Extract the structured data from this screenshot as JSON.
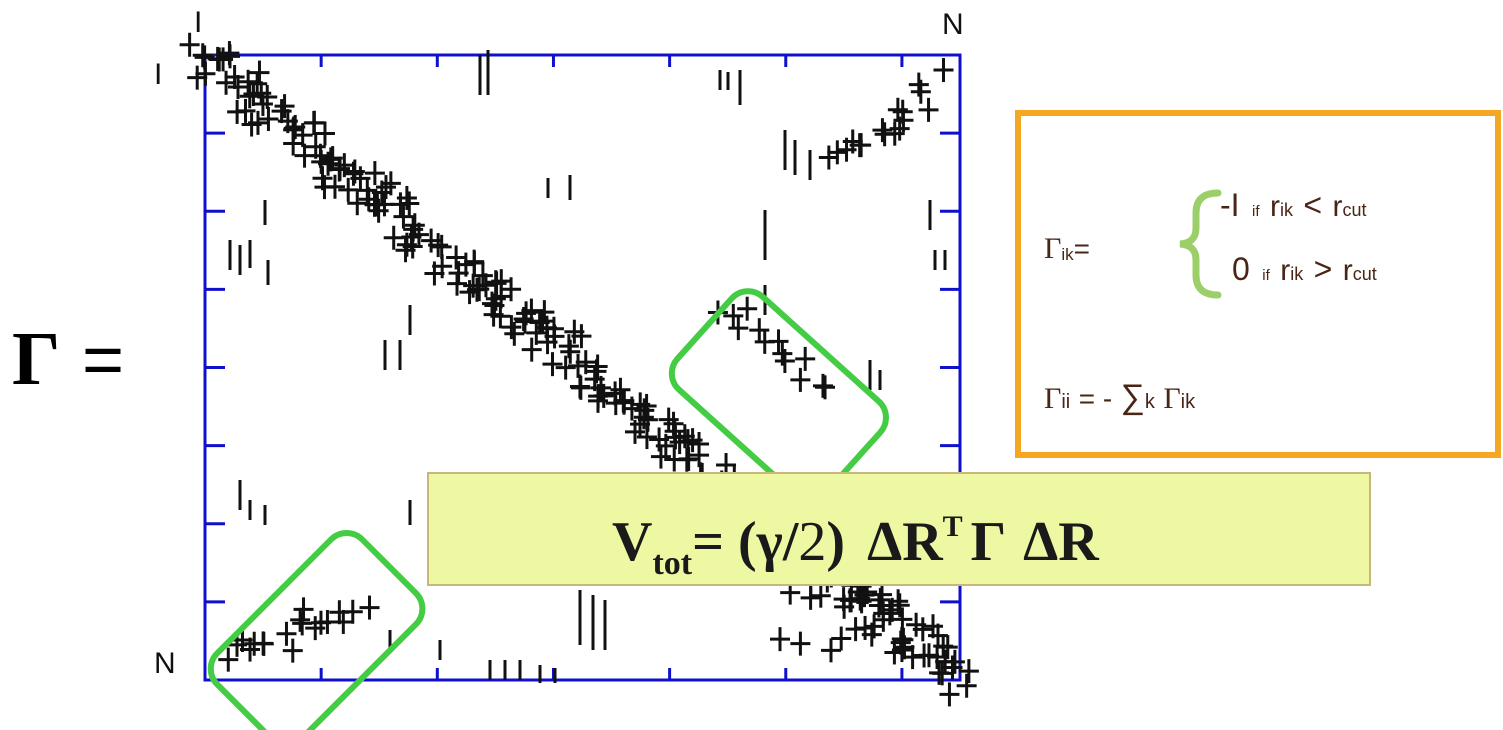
{
  "lhs": {
    "symbol": "Γ",
    "equals": "="
  },
  "matrix": {
    "top_left_label": "I",
    "top_right_label": "N",
    "left_top_label": "I",
    "left_bottom_label": "N",
    "border_color": "#1010cc",
    "highlight_color": "#44cc44"
  },
  "definition": {
    "border_color": "#f5a623",
    "text_color": "#4a2516",
    "brace_color": "#9ccf6a",
    "lhs": "Γ",
    "lhs_sub": "ik",
    "lhs_eq": "=",
    "case1": {
      "value": "-I",
      "cond": "if",
      "r": "r",
      "r_sub": "ik",
      "op": "<",
      "rc": "r",
      "rc_sub": "cut"
    },
    "case2": {
      "value": "0",
      "cond": "if",
      "r": "r",
      "r_sub": "ik",
      "op": ">",
      "rc": "r",
      "rc_sub": "cut"
    },
    "diag": {
      "lhs": "Γ",
      "lhs_sub": "ii",
      "eq": "= -",
      "sum": "∑",
      "sum_sub": "k",
      "rhs": "Γ",
      "rhs_sub": "ik"
    }
  },
  "formula": {
    "bg_color": "#eef7a2",
    "border_color": "#c7b77a",
    "V": "V",
    "V_sub": "tot",
    "eq": "= (γ/",
    "two": "2",
    "close": ")",
    "dR": "ΔR",
    "T": "T",
    "gamma": "Γ",
    "dR2": "ΔR"
  }
}
